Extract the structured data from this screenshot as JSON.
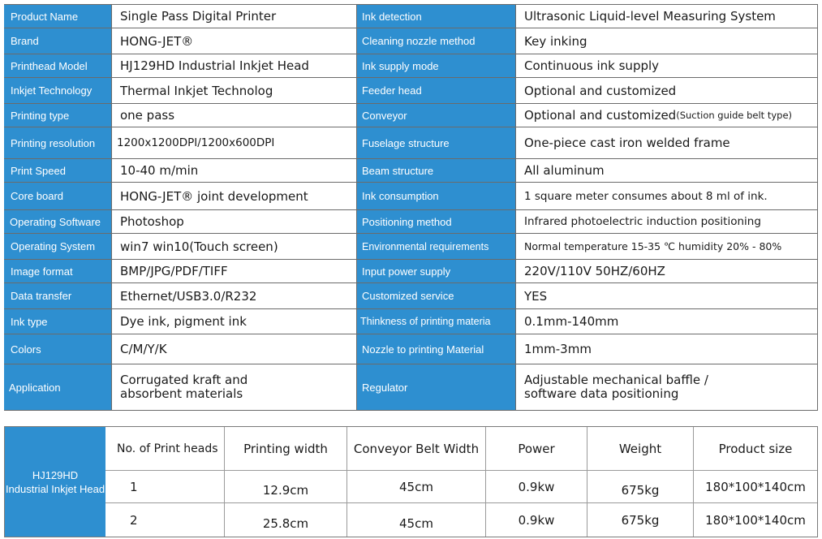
{
  "specs": [
    {
      "l1": "Product Name",
      "v1": "Single Pass Digital Printer",
      "l2": "Ink detection",
      "v2": "Ultrasonic Liquid-level Measuring System"
    },
    {
      "l1": "Brand",
      "v1": "HONG-JET®",
      "l2": "Cleaning nozzle method",
      "v2": "Key inking"
    },
    {
      "l1": "Printhead Model",
      "v1": "HJ129HD Industrial Inkjet Head",
      "l2": "Ink supply mode",
      "v2": "Continuous ink supply"
    },
    {
      "l1": "Inkjet Technology",
      "v1": "Thermal Inkjet Technolog",
      "l2": "Feeder head",
      "v2": "Optional  and  customized"
    },
    {
      "l1": "Printing type",
      "v1": "one pass",
      "l2": "Conveyor",
      "v2": "Optional  and  customized",
      "v2_note": "(Suction guide belt type)"
    },
    {
      "l1": "Printing resolution",
      "v1": "1200x1200DPI/1200x600DPI",
      "l2": "Fuselage structure",
      "v2": "One-piece cast iron welded frame"
    },
    {
      "l1": "Print Speed",
      "v1": "10-40 m/min",
      "l2": "Beam structure",
      "v2": "All aluminum"
    },
    {
      "l1": "Core board",
      "v1": "HONG-JET® joint development",
      "l2": "Ink consumption",
      "v2": "1 square meter consumes about 8 ml of ink."
    },
    {
      "l1": "Operating Software",
      "v1": "Photoshop",
      "l2": "Positioning method",
      "v2": "Infrared photoelectric induction positioning"
    },
    {
      "l1": "Operating System",
      "v1": "win7 win10(Touch screen)",
      "l2": "Environmental requirements",
      "v2": "Normal temperature 15-35 ℃ humidity 20% - 80%"
    },
    {
      "l1": "Image format",
      "v1": "BMP/JPG/PDF/TIFF",
      "l2": "Input power supply",
      "v2": "220V/110V  50HZ/60HZ"
    },
    {
      "l1": "Data transfer",
      "v1": "Ethernet/USB3.0/R232",
      "l2": "Customized service",
      "v2": "YES"
    },
    {
      "l1": "Ink type",
      "v1": "Dye ink, pigment ink",
      "l2": "Thinkness of printing materia",
      "v2": "0.1mm-140mm"
    },
    {
      "l1": "Colors",
      "v1": "C/M/Y/K",
      "l2": "Nozzle to printing Material",
      "v2": "1mm-3mm"
    },
    {
      "l1": "Application",
      "v1": "Corrugated kraft and absorbent materials",
      "l2": "Regulator",
      "v2": "Adjustable mechanical baffle / software data positioning"
    }
  ],
  "model_table": {
    "model_line1": "HJ129HD",
    "model_line2": "Industrial Inkjet Head",
    "headers": [
      "No. of Print heads",
      "Printing width",
      "Conveyor Belt Width",
      "Power",
      "Weight",
      "Product size"
    ],
    "rows": [
      [
        "1",
        "12.9cm",
        "45cm",
        "0.9kw",
        "675kg",
        "180*100*140cm"
      ],
      [
        "2",
        "25.8cm",
        "45cm",
        "0.9kw",
        "675kg",
        "180*100*140cm"
      ]
    ]
  },
  "colors": {
    "label_bg": "#2e8fd0",
    "label_text": "#ffffff",
    "border": "#6b6b6b"
  }
}
